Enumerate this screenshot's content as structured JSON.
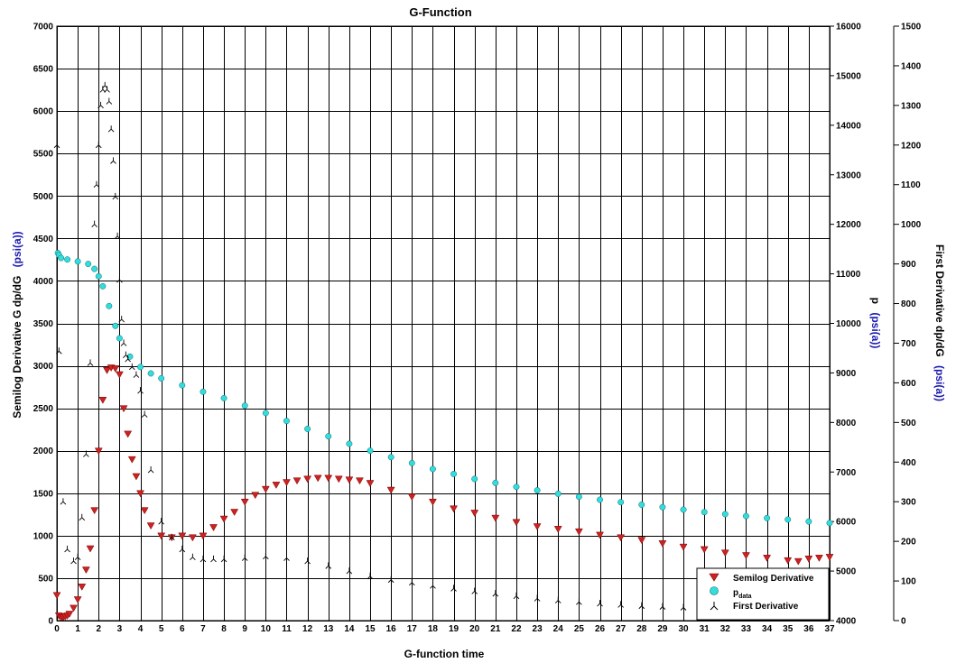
{
  "chart_data": {
    "type": "scatter",
    "title": "G-Function",
    "xlabel": "G-function time",
    "ylabel_left": {
      "text": "Semilog Derivative   G dp/dG",
      "unit": "(psi(a))"
    },
    "ylabel_right1": {
      "text": "p",
      "unit": "(psi(a))"
    },
    "ylabel_right2": {
      "text": "First Derivative   dp/dG",
      "unit": "(psi(a))"
    },
    "xlim": [
      0,
      37
    ],
    "x_ticks": [
      0,
      1,
      2,
      3,
      4,
      5,
      6,
      7,
      8,
      9,
      10,
      11,
      12,
      13,
      14,
      15,
      16,
      17,
      18,
      19,
      20,
      21,
      22,
      23,
      24,
      25,
      26,
      27,
      28,
      29,
      30,
      31,
      32,
      33,
      34,
      35,
      36,
      37
    ],
    "y_left": {
      "lim": [
        0,
        7000
      ],
      "ticks": [
        0,
        500,
        1000,
        1500,
        2000,
        2500,
        3000,
        3500,
        4000,
        4500,
        5000,
        5500,
        6000,
        6500,
        7000
      ]
    },
    "y_right1": {
      "lim": [
        4000,
        16000
      ],
      "ticks": [
        4000,
        5000,
        6000,
        7000,
        8000,
        9000,
        10000,
        11000,
        12000,
        13000,
        14000,
        15000,
        16000
      ]
    },
    "y_right2": {
      "lim": [
        0,
        1500
      ],
      "ticks": [
        0,
        100,
        200,
        300,
        400,
        500,
        600,
        700,
        800,
        900,
        1000,
        1100,
        1200,
        1300,
        1400,
        1500
      ]
    },
    "grid": true,
    "legend_position": "bottom-right",
    "legend": [
      {
        "label": "Semilog Derivative",
        "marker": "triangle-down",
        "color": "#cc2222"
      },
      {
        "label": "p",
        "sub": "data",
        "marker": "circle",
        "color": "#33dddd"
      },
      {
        "label": "First Derivative",
        "marker": "inverted-y",
        "color": "#000000"
      }
    ],
    "series": [
      {
        "axis": "left",
        "marker": "triangle-down",
        "color": "#cc2222",
        "x": [
          0,
          0.1,
          0.2,
          0.3,
          0.4,
          0.5,
          0.6,
          0.8,
          1.0,
          1.2,
          1.4,
          1.6,
          1.8,
          2.0,
          2.2,
          2.4,
          2.6,
          2.8,
          3.0,
          3.2,
          3.4,
          3.6,
          3.8,
          4.0,
          4.2,
          4.5,
          5.0,
          5.5,
          6.0,
          6.5,
          7.0,
          7.5,
          8.0,
          8.5,
          9.0,
          9.5,
          10,
          10.5,
          11,
          11.5,
          12,
          12.5,
          13,
          13.5,
          14,
          14.5,
          15,
          16,
          17,
          18,
          19,
          20,
          21,
          22,
          23,
          24,
          25,
          26,
          27,
          28,
          29,
          30,
          31,
          32,
          33,
          34,
          35,
          35.5,
          36,
          36.5,
          37
        ],
        "y": [
          300,
          60,
          40,
          40,
          50,
          60,
          80,
          150,
          250,
          400,
          600,
          850,
          1300,
          2000,
          2600,
          2950,
          2980,
          2970,
          2900,
          2500,
          2200,
          1900,
          1700,
          1500,
          1300,
          1120,
          1000,
          980,
          1000,
          980,
          1000,
          1100,
          1200,
          1280,
          1400,
          1480,
          1550,
          1600,
          1630,
          1650,
          1670,
          1680,
          1680,
          1670,
          1660,
          1650,
          1620,
          1540,
          1460,
          1400,
          1320,
          1270,
          1210,
          1160,
          1110,
          1080,
          1050,
          1010,
          980,
          950,
          910,
          870,
          840,
          800,
          770,
          740,
          710,
          700,
          730,
          740,
          750
        ]
      },
      {
        "axis": "right1",
        "marker": "circle",
        "color": "#33dddd",
        "x": [
          0.05,
          0.1,
          0.2,
          0.5,
          1.0,
          1.5,
          1.8,
          2.0,
          2.2,
          2.5,
          2.8,
          3.0,
          3.5,
          4.0,
          4.5,
          5.0,
          6.0,
          7.0,
          8.0,
          9.0,
          10,
          11,
          12,
          13,
          14,
          15,
          16,
          17,
          18,
          19,
          20,
          21,
          22,
          23,
          24,
          25,
          26,
          27,
          28,
          29,
          30,
          31,
          32,
          33,
          34,
          35,
          36,
          37
        ],
        "y": [
          11420,
          11380,
          11320,
          11290,
          11250,
          11200,
          11100,
          10950,
          10750,
          10350,
          9950,
          9700,
          9330,
          9120,
          8990,
          8890,
          8750,
          8620,
          8490,
          8340,
          8190,
          8030,
          7870,
          7720,
          7570,
          7430,
          7300,
          7180,
          7060,
          6960,
          6860,
          6780,
          6700,
          6630,
          6560,
          6500,
          6440,
          6390,
          6340,
          6290,
          6240,
          6190,
          6150,
          6110,
          6070,
          6040,
          6000,
          5970
        ]
      },
      {
        "axis": "right2",
        "marker": "inverted-y",
        "color": "#000000",
        "x": [
          0,
          0.1,
          0.3,
          0.5,
          0.8,
          1.0,
          1.2,
          1.4,
          1.6,
          1.8,
          1.9,
          2.0,
          2.1,
          2.2,
          2.3,
          2.4,
          2.5,
          2.6,
          2.7,
          2.8,
          2.9,
          3.0,
          3.1,
          3.2,
          3.3,
          3.4,
          3.6,
          3.8,
          4.0,
          4.2,
          4.5,
          5.0,
          5.5,
          6.0,
          6.5,
          7.0,
          7.5,
          8.0,
          9.0,
          10,
          11,
          12,
          13,
          14,
          15,
          16,
          17,
          18,
          19,
          20,
          21,
          22,
          23,
          24,
          25,
          26,
          27,
          28,
          29,
          30,
          31
        ],
        "y": [
          1200,
          680,
          300,
          180,
          150,
          160,
          260,
          420,
          650,
          1000,
          1100,
          1200,
          1300,
          1340,
          1350,
          1340,
          1310,
          1240,
          1160,
          1070,
          970,
          860,
          760,
          700,
          670,
          660,
          640,
          620,
          580,
          520,
          380,
          250,
          210,
          180,
          160,
          155,
          155,
          155,
          158,
          162,
          158,
          150,
          138,
          125,
          112,
          103,
          96,
          88,
          81,
          74,
          68,
          62,
          56,
          51,
          47,
          43,
          40,
          37,
          35,
          33,
          31
        ]
      }
    ]
  }
}
